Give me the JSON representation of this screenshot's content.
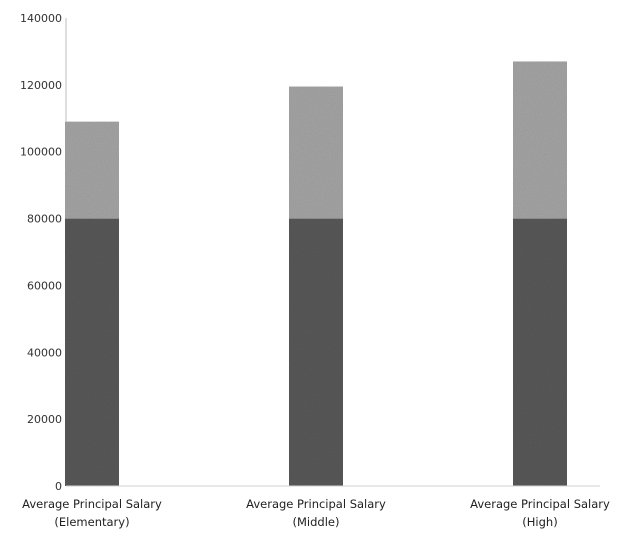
{
  "chart_data": {
    "type": "bar",
    "stacked": true,
    "categories": [
      [
        "Average Principal Salary",
        "(Elementary)"
      ],
      [
        "Average Principal Salary",
        "(Middle)"
      ],
      [
        "Average Principal Salary",
        "(High)"
      ]
    ],
    "series": [
      {
        "color": "#585858",
        "values": [
          80000,
          80000,
          80000
        ]
      },
      {
        "color": "#a4a4a4",
        "values": [
          29000,
          39500,
          47000
        ]
      }
    ],
    "totals": [
      109000,
      119500,
      127000
    ],
    "ylim": [
      0,
      140000
    ],
    "yticks": [
      0,
      20000,
      40000,
      60000,
      80000,
      100000,
      120000,
      140000
    ],
    "yticks_labeled": [
      0,
      20000,
      40000,
      60000,
      80000,
      100000,
      120000,
      140000
    ],
    "grid": false,
    "legend": "none",
    "title": "",
    "xlabel": "",
    "ylabel": ""
  }
}
